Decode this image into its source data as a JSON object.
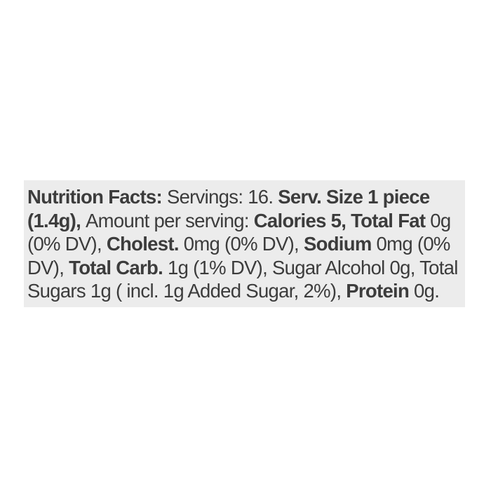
{
  "page": {
    "background_color": "#ffffff"
  },
  "panel": {
    "background_color": "#ececec",
    "text_color": "#3c3c3c"
  },
  "nutrition": {
    "full_text": "Nutrition Facts: Servings: 16. Serv. Size 1 piece (1.4g), Amount per serving: Calories 5, Total Fat 0g (0% DV), Cholest. 0mg (0% DV), Sodium 0mg (0% DV), Total Carb. 1g (1% DV), Sugar Alcohol 0g, Total Sugars 1g ( incl. 1g Added Sugar, 2%), Protein 0g.",
    "facts": {
      "servings": "16",
      "serving_size": "1 piece (1.4g)",
      "calories": "5",
      "total_fat": "0g (0% DV)",
      "cholesterol": "0mg (0% DV)",
      "sodium": "0mg (0% DV)",
      "total_carb": "1g (1% DV)",
      "sugar_alcohol": "0g",
      "total_sugars": "1g",
      "added_sugar": "1g (2%)",
      "protein": "0g"
    },
    "lines": [
      {
        "runs": [
          {
            "text": "Nutrition Facts: ",
            "bold": true
          },
          {
            "text": "Servings: 16. ",
            "bold": false
          },
          {
            "text": "Serv. Size 1 piece",
            "bold": true
          }
        ]
      },
      {
        "runs": [
          {
            "text": "(1.4g), ",
            "bold": true
          },
          {
            "text": "Amount per serving: ",
            "bold": false
          },
          {
            "text": "Calories 5, Total Fat ",
            "bold": true
          },
          {
            "text": "0g",
            "bold": false
          }
        ]
      },
      {
        "runs": [
          {
            "text": "(0% DV), ",
            "bold": false
          },
          {
            "text": "Cholest. ",
            "bold": true
          },
          {
            "text": "0mg (0% DV), ",
            "bold": false
          },
          {
            "text": "Sodium ",
            "bold": true
          },
          {
            "text": "0mg (0%",
            "bold": false
          }
        ]
      },
      {
        "runs": [
          {
            "text": "DV), ",
            "bold": false
          },
          {
            "text": "Total Carb. ",
            "bold": true
          },
          {
            "text": "1g (1% DV), Sugar Alcohol 0g, Total",
            "bold": false
          }
        ]
      },
      {
        "runs": [
          {
            "text": "Sugars 1g ( incl. 1g Added Sugar, 2%), ",
            "bold": false
          },
          {
            "text": "Protein ",
            "bold": true
          },
          {
            "text": "0g.",
            "bold": false
          }
        ]
      }
    ]
  }
}
